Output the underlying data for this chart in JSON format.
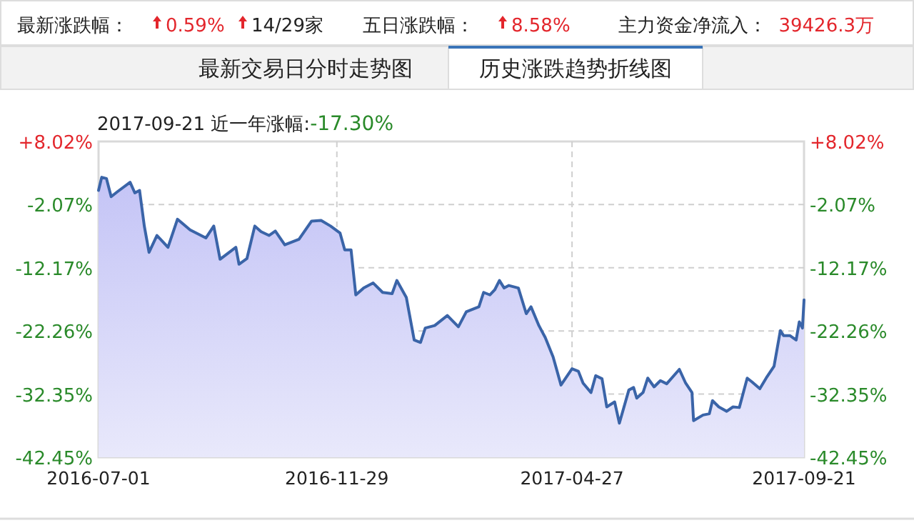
{
  "chart_data": {
    "type": "area",
    "title": "2017-09-21 近一年涨幅:-17.30%",
    "annotations": [
      "最新涨跌幅：",
      "0.59%",
      "14/29家",
      "五日涨跌幅：",
      "8.58%",
      "主力资金净流入：",
      "39426.3万",
      "最新交易日分时走势图",
      "历史涨跌趋势折线图"
    ],
    "x": [
      "2016-07-01",
      "2016-07-03",
      "2016-07-06",
      "2016-07-09",
      "2016-07-13",
      "2016-07-21",
      "2016-07-24",
      "2016-07-27",
      "2016-07-30",
      "2016-08-02",
      "2016-08-07",
      "2016-08-10",
      "2016-08-14",
      "2016-08-20",
      "2016-08-28",
      "2016-09-07",
      "2016-09-12",
      "2016-09-16",
      "2016-09-26",
      "2016-09-28",
      "2016-10-03",
      "2016-10-08",
      "2016-10-12",
      "2016-10-17",
      "2016-10-21",
      "2016-10-27",
      "2016-11-05",
      "2016-11-13",
      "2016-11-19",
      "2016-11-25",
      "2016-12-01",
      "2016-12-04",
      "2016-12-08",
      "2016-12-11",
      "2016-12-16",
      "2016-12-22",
      "2016-12-28",
      "2017-01-03",
      "2017-01-06",
      "2017-01-12",
      "2017-01-17",
      "2017-01-21",
      "2017-01-24",
      "2017-01-30",
      "2017-02-07",
      "2017-02-14",
      "2017-02-19",
      "2017-02-27",
      "2017-03-02",
      "2017-03-06",
      "2017-03-09",
      "2017-03-12",
      "2017-03-15",
      "2017-03-18",
      "2017-03-24",
      "2017-03-29",
      "2017-04-01",
      "2017-04-06",
      "2017-04-10",
      "2017-04-15",
      "2017-04-20",
      "2017-04-27",
      "2017-05-01",
      "2017-05-04",
      "2017-05-09",
      "2017-05-12",
      "2017-05-16",
      "2017-05-19",
      "2017-05-24",
      "2017-05-27",
      "2017-06-02",
      "2017-06-05",
      "2017-06-07",
      "2017-06-11",
      "2017-06-14",
      "2017-06-18",
      "2017-06-22",
      "2017-06-26",
      "2017-07-04",
      "2017-07-08",
      "2017-07-12",
      "2017-07-13",
      "2017-07-19",
      "2017-07-23",
      "2017-07-25",
      "2017-07-29",
      "2017-08-03",
      "2017-08-07",
      "2017-08-11",
      "2017-08-16",
      "2017-08-19",
      "2017-08-24",
      "2017-08-28",
      "2017-09-02",
      "2017-09-06",
      "2017-09-08",
      "2017-09-12",
      "2017-09-16",
      "2017-09-18",
      "2017-09-20",
      "2017-09-21"
    ],
    "series": [
      {
        "color": "#3a64a8",
        "values": [
          0.2,
          2.3,
          2.1,
          -0.8,
          0.0,
          1.5,
          -0.2,
          0.2,
          -5.5,
          -9.7,
          -7.0,
          -7.8,
          -8.9,
          -4.4,
          -6.1,
          -7.4,
          -5.5,
          -10.8,
          -8.9,
          -11.6,
          -10.7,
          -5.5,
          -6.4,
          -7.0,
          -6.3,
          -8.5,
          -7.6,
          -4.7,
          -4.6,
          -5.5,
          -6.6,
          -9.3,
          -9.3,
          -16.5,
          -15.4,
          -14.6,
          -16.1,
          -16.3,
          -14.2,
          -16.9,
          -23.7,
          -24.1,
          -21.8,
          -21.4,
          -19.8,
          -21.6,
          -19.2,
          -18.4,
          -16.1,
          -16.5,
          -15.7,
          -14.2,
          -15.4,
          -15.0,
          -15.4,
          -19.5,
          -18.4,
          -21.4,
          -23.3,
          -26.4,
          -30.9,
          -28.3,
          -28.7,
          -30.6,
          -32.1,
          -29.4,
          -29.9,
          -34.4,
          -33.6,
          -37.0,
          -31.7,
          -31.3,
          -33.0,
          -32.1,
          -29.8,
          -31.2,
          -30.2,
          -30.7,
          -28.4,
          -30.6,
          -32.1,
          -36.6,
          -35.7,
          -35.5,
          -33.4,
          -34.4,
          -35.1,
          -34.4,
          -34.5,
          -29.8,
          -30.4,
          -31.5,
          -29.8,
          -27.9,
          -22.2,
          -23.0,
          -23.0,
          -23.7,
          -20.8,
          -21.8,
          -17.3
        ]
      }
    ],
    "xlim": [
      "2016-07-01",
      "2017-09-21"
    ],
    "xticks": [
      {
        "value": "2016-07-01",
        "label": "2016-07-01"
      },
      {
        "value": "2016-11-29",
        "label": "2016-11-29"
      },
      {
        "value": "2017-04-27",
        "label": "2017-04-27"
      },
      {
        "value": "2017-09-21",
        "label": "2017-09-21"
      }
    ],
    "ylim": [
      -42.45,
      8.02
    ],
    "yticks": [
      {
        "value": 8.02,
        "label": "+8.02%"
      },
      {
        "value": -2.07,
        "label": "-2.07%"
      },
      {
        "value": -12.17,
        "label": "-12.17%"
      },
      {
        "value": -22.26,
        "label": "-22.26%"
      },
      {
        "value": -32.35,
        "label": "-32.35%"
      },
      {
        "value": -42.45,
        "label": "-42.45%"
      }
    ],
    "y2lim": [
      -42.45,
      8.02
    ],
    "y2ticks": [
      {
        "value": 8.02,
        "label": "+8.02%"
      },
      {
        "value": -2.07,
        "label": "-2.07%"
      },
      {
        "value": -12.17,
        "label": "-12.17%"
      },
      {
        "value": -22.26,
        "label": "-22.26%"
      },
      {
        "value": -32.35,
        "label": "-32.35%"
      },
      {
        "value": -42.45,
        "label": "-42.45%"
      }
    ],
    "grid": true
  }
}
